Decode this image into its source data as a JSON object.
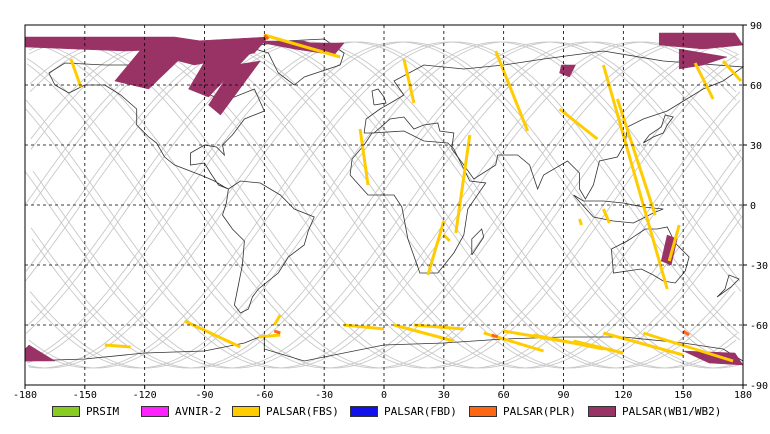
{
  "map": {
    "x_ticks": [
      "-180",
      "-150",
      "-120",
      "-90",
      "-60",
      "-30",
      "0",
      "30",
      "60",
      "90",
      "120",
      "150",
      "180"
    ],
    "y_ticks": [
      "90",
      "60",
      "30",
      "0",
      "-30",
      "-60",
      "-90"
    ],
    "projection": "equirectangular",
    "grid": "dashed"
  },
  "legend": [
    {
      "label": "PRSIM",
      "color": "#88cc22"
    },
    {
      "label": "AVNIR-2",
      "color": "#ff22ff"
    },
    {
      "label": "PALSAR(FBS)",
      "color": "#ffcc00"
    },
    {
      "label": "PALSAR(FBD)",
      "color": "#1111ee"
    },
    {
      "label": "PALSAR(PLR)",
      "color": "#ff6611"
    },
    {
      "label": "PALSAR(WB1/WB2)",
      "color": "#993366"
    }
  ]
}
